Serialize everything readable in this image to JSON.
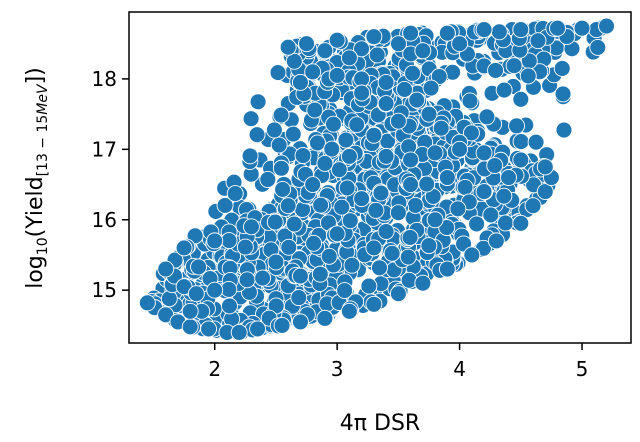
{
  "chart_data": {
    "type": "scatter",
    "title": "",
    "xlabel": "4π DSR",
    "ylabel_base": "log",
    "ylabel_sub": "10",
    "ylabel_main": "(Yield",
    "ylabel_range": "[13 − 15",
    "ylabel_unit": "MeV",
    "ylabel_close": "])",
    "xlim": [
      1.3,
      5.4
    ],
    "ylim": [
      14.25,
      18.95
    ],
    "xticks": [
      2,
      3,
      4,
      5
    ],
    "yticks": [
      15,
      16,
      17,
      18
    ],
    "grid": false,
    "marker_color": "#1f77b4",
    "series": [
      {
        "points": [
          [
            1.45,
            14.82
          ],
          [
            1.6,
            14.65
          ],
          [
            1.7,
            14.55
          ],
          [
            1.75,
            15.05
          ],
          [
            1.8,
            14.48
          ],
          [
            1.85,
            14.95
          ],
          [
            1.95,
            14.45
          ],
          [
            2.1,
            14.4
          ],
          [
            2.2,
            14.4
          ],
          [
            2.35,
            14.45
          ],
          [
            2.55,
            14.5
          ],
          [
            2.7,
            14.55
          ],
          [
            2.9,
            14.6
          ],
          [
            3.1,
            14.7
          ],
          [
            3.3,
            14.8
          ],
          [
            3.5,
            14.95
          ],
          [
            3.7,
            15.1
          ],
          [
            3.9,
            15.3
          ],
          [
            4.1,
            15.5
          ],
          [
            4.3,
            15.7
          ],
          [
            4.5,
            15.95
          ],
          [
            4.6,
            16.2
          ],
          [
            4.7,
            16.4
          ],
          [
            4.75,
            16.6
          ],
          [
            4.7,
            16.75
          ],
          [
            4.5,
            16.85
          ],
          [
            4.2,
            16.95
          ],
          [
            4.0,
            17.1
          ],
          [
            3.85,
            17.3
          ],
          [
            3.75,
            17.5
          ],
          [
            3.65,
            17.7
          ],
          [
            3.55,
            17.85
          ],
          [
            3.4,
            17.95
          ],
          [
            3.2,
            18.0
          ],
          [
            3.0,
            18.05
          ],
          [
            2.8,
            18.1
          ],
          [
            2.65,
            18.25
          ],
          [
            2.6,
            18.45
          ],
          [
            2.75,
            18.5
          ],
          [
            3.0,
            18.55
          ],
          [
            3.3,
            18.6
          ],
          [
            3.6,
            18.65
          ],
          [
            3.9,
            18.65
          ],
          [
            4.2,
            18.7
          ],
          [
            4.5,
            18.7
          ],
          [
            4.8,
            18.72
          ],
          [
            5.0,
            18.72
          ],
          [
            5.2,
            18.75
          ],
          [
            1.6,
            15.3
          ],
          [
            1.75,
            15.6
          ],
          [
            2.0,
            15.7
          ],
          [
            2.3,
            15.9
          ],
          [
            2.6,
            16.2
          ],
          [
            2.8,
            16.5
          ],
          [
            2.9,
            16.8
          ],
          [
            3.1,
            16.9
          ],
          [
            3.4,
            16.9
          ],
          [
            3.6,
            16.85
          ],
          [
            3.8,
            16.95
          ],
          [
            4.0,
            17.0
          ],
          [
            3.2,
            16.3
          ],
          [
            3.5,
            16.1
          ],
          [
            3.0,
            15.8
          ],
          [
            2.5,
            15.4
          ],
          [
            2.0,
            15.0
          ],
          [
            1.8,
            14.7
          ],
          [
            2.7,
            15.2
          ],
          [
            3.3,
            15.6
          ],
          [
            3.8,
            16.0
          ],
          [
            4.2,
            16.4
          ],
          [
            3.9,
            16.6
          ],
          [
            3.6,
            16.5
          ],
          [
            4.4,
            16.6
          ],
          [
            3.3,
            17.2
          ],
          [
            3.5,
            17.4
          ],
          [
            3.4,
            17.65
          ],
          [
            3.2,
            17.8
          ],
          [
            3.1,
            18.3
          ],
          [
            3.7,
            18.4
          ],
          [
            4.0,
            18.5
          ],
          [
            2.9,
            18.4
          ],
          [
            2.7,
            17.95
          ]
        ]
      }
    ]
  }
}
